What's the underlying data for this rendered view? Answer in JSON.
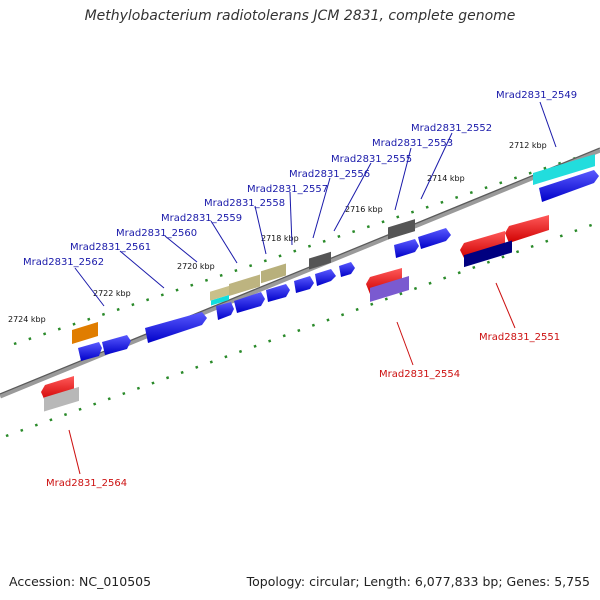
{
  "title": "Methylobacterium radiotolerans JCM 2831, complete genome",
  "footer": {
    "accession": "Accession: NC_010505",
    "topology": "Topology: circular; Length: 6,077,833 bp; Genes: 5,755"
  },
  "colors": {
    "label_blue": "#1a1aaa",
    "label_red": "#cc1111",
    "backbone": "#888888",
    "tick": "#2a8a2a"
  },
  "scale_ticks": [
    "2724 kbp",
    "2722 kbp",
    "2720 kbp",
    "2718 kbp",
    "2716 kbp",
    "2714 kbp",
    "2712 kbp"
  ],
  "gene_labels_upper": [
    "Mrad2831_2562",
    "Mrad2831_2561",
    "Mrad2831_2560",
    "Mrad2831_2559",
    "Mrad2831_2558",
    "Mrad2831_2557",
    "Mrad2831_2556",
    "Mrad2831_2555",
    "Mrad2831_2553",
    "Mrad2831_2552",
    "Mrad2831_2549"
  ],
  "gene_labels_lower": [
    "Mrad2831_2564",
    "Mrad2831_2554",
    "Mrad2831_2551"
  ]
}
